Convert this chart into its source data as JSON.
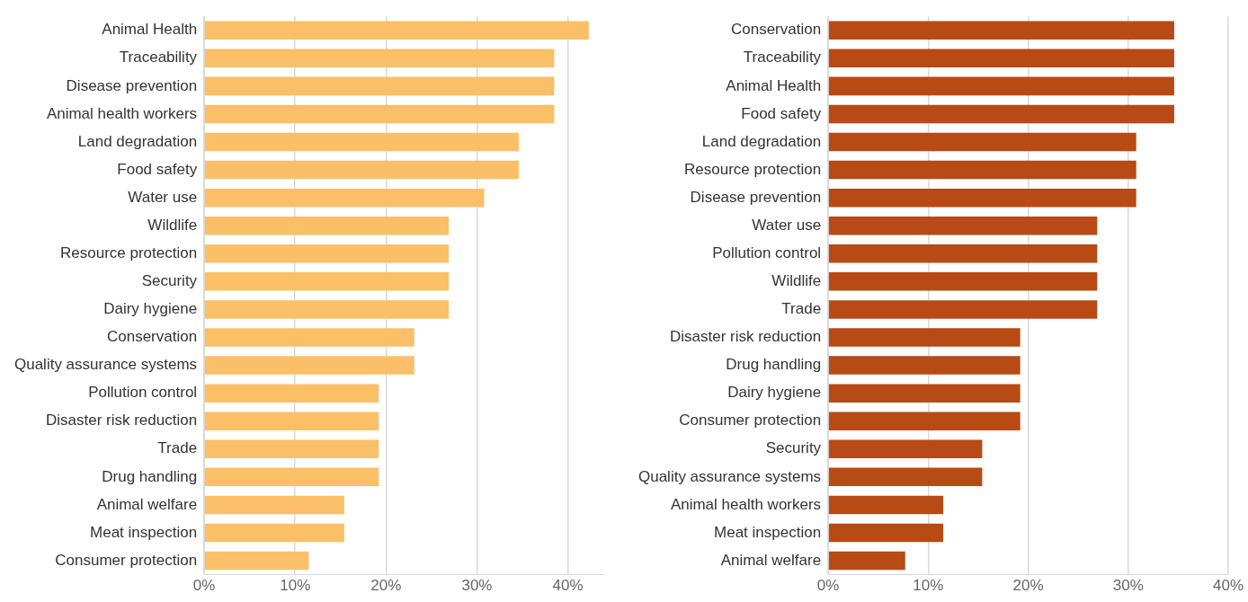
{
  "chart_data": [
    {
      "type": "bar",
      "orientation": "horizontal",
      "categories": [
        "Animal Health",
        "Traceability",
        "Disease prevention",
        "Animal health workers",
        "Land degradation",
        "Food safety",
        "Water use",
        "Wildlife",
        "Resource protection",
        "Security",
        "Dairy hygiene",
        "Conservation",
        "Quality assurance systems",
        "Pollution control",
        "Disaster risk reduction",
        "Trade",
        "Drug handling",
        "Animal welfare",
        "Meat inspection",
        "Consumer protection"
      ],
      "values": [
        42.3,
        38.5,
        38.5,
        38.5,
        34.6,
        34.6,
        30.8,
        26.9,
        26.9,
        26.9,
        26.9,
        23.1,
        23.1,
        19.2,
        19.2,
        19.2,
        19.2,
        15.4,
        15.4,
        11.5
      ],
      "color": "#fbbf68",
      "xlim": [
        0,
        44
      ],
      "xticks": [
        {
          "value": 0,
          "label": "0%"
        },
        {
          "value": 10,
          "label": "10%"
        },
        {
          "value": 20,
          "label": "20%"
        },
        {
          "value": 30,
          "label": "30%"
        },
        {
          "value": 40,
          "label": "40%"
        }
      ],
      "grid": "x",
      "legend": false
    },
    {
      "type": "bar",
      "orientation": "horizontal",
      "categories": [
        "Conservation",
        "Traceability",
        "Animal Health",
        "Food safety",
        "Land degradation",
        "Resource protection",
        "Disease prevention",
        "Water use",
        "Pollution control",
        "Wildlife",
        "Trade",
        "Disaster risk reduction",
        "Drug handling",
        "Dairy hygiene",
        "Consumer protection",
        "Security",
        "Quality assurance systems",
        "Animal health workers",
        "Meat inspection",
        "Animal welfare"
      ],
      "values": [
        34.6,
        34.6,
        34.6,
        34.6,
        30.8,
        30.8,
        30.8,
        26.9,
        26.9,
        26.9,
        26.9,
        19.2,
        19.2,
        19.2,
        19.2,
        15.4,
        15.4,
        11.5,
        11.5,
        7.7
      ],
      "color": "#b84a15",
      "xlim": [
        0,
        40
      ],
      "xticks": [
        {
          "value": 0,
          "label": "0%"
        },
        {
          "value": 10,
          "label": "10%"
        },
        {
          "value": 20,
          "label": "20%"
        },
        {
          "value": 30,
          "label": "30%"
        },
        {
          "value": 40,
          "label": "40%"
        }
      ],
      "grid": "x",
      "legend": false
    }
  ]
}
